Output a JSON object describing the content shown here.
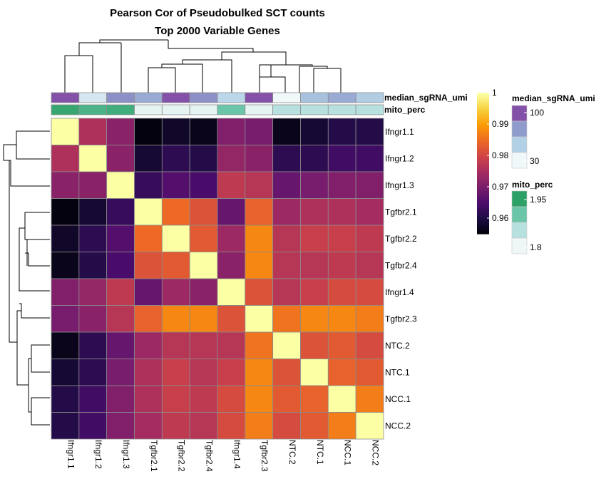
{
  "chart_data": {
    "type": "heatmap",
    "title": "Pearson Cor of Pseudobulked SCT counts",
    "subtitle": "Top 2000 Variable Genes",
    "row_labels": [
      "Ifngr1.1",
      "Ifngr1.2",
      "Ifngr1.3",
      "Tgfbr2.1",
      "Tgfbr2.2",
      "Tgfbr2.4",
      "Ifngr1.4",
      "Tgfbr2.3",
      "NTC.2",
      "NTC.1",
      "NCC.1",
      "NCC.2"
    ],
    "col_labels": [
      "Ifngr1.1",
      "Ifngr1.2",
      "Ifngr1.3",
      "Tgfbr2.1",
      "Tgfbr2.2",
      "Tgfbr2.4",
      "Ifngr1.4",
      "Tgfbr2.3",
      "NTC.2",
      "NTC.1",
      "NCC.1",
      "NCC.2"
    ],
    "values": [
      [
        1.0,
        0.976,
        0.972,
        0.956,
        0.958,
        0.957,
        0.971,
        0.97,
        0.957,
        0.959,
        0.961,
        0.961
      ],
      [
        0.976,
        1.0,
        0.972,
        0.959,
        0.962,
        0.961,
        0.973,
        0.972,
        0.962,
        0.962,
        0.964,
        0.964
      ],
      [
        0.972,
        0.972,
        1.0,
        0.963,
        0.966,
        0.965,
        0.978,
        0.977,
        0.968,
        0.97,
        0.971,
        0.971
      ],
      [
        0.956,
        0.959,
        0.963,
        1.0,
        0.985,
        0.982,
        0.968,
        0.984,
        0.974,
        0.976,
        0.976,
        0.975
      ],
      [
        0.958,
        0.962,
        0.966,
        0.985,
        1.0,
        0.983,
        0.974,
        0.988,
        0.977,
        0.979,
        0.979,
        0.978
      ],
      [
        0.957,
        0.961,
        0.965,
        0.982,
        0.983,
        1.0,
        0.972,
        0.988,
        0.977,
        0.977,
        0.978,
        0.977
      ],
      [
        0.971,
        0.973,
        0.978,
        0.968,
        0.974,
        0.972,
        1.0,
        0.982,
        0.977,
        0.979,
        0.981,
        0.981
      ],
      [
        0.97,
        0.972,
        0.977,
        0.984,
        0.988,
        0.988,
        0.982,
        1.0,
        0.986,
        0.988,
        0.988,
        0.987
      ],
      [
        0.957,
        0.962,
        0.968,
        0.974,
        0.977,
        0.977,
        0.977,
        0.986,
        1.0,
        0.982,
        0.983,
        0.981
      ],
      [
        0.959,
        0.962,
        0.97,
        0.976,
        0.979,
        0.977,
        0.979,
        0.988,
        0.982,
        1.0,
        0.984,
        0.983
      ],
      [
        0.961,
        0.964,
        0.971,
        0.976,
        0.979,
        0.978,
        0.981,
        0.988,
        0.983,
        0.984,
        1.0,
        0.987
      ],
      [
        0.961,
        0.964,
        0.971,
        0.975,
        0.978,
        0.977,
        0.981,
        0.987,
        0.981,
        0.983,
        0.987,
        1.0
      ]
    ],
    "color_scale": {
      "range": [
        0.955,
        1.0
      ],
      "ticks": [
        "0.96",
        "0.97",
        "0.98",
        "0.99",
        "1"
      ],
      "tick_values": [
        0.96,
        0.97,
        0.98,
        0.99,
        1.0
      ],
      "palette": "inferno",
      "colors": [
        "#000004",
        "#1b0c41",
        "#4a0c6b",
        "#781c6d",
        "#a52c60",
        "#cf4446",
        "#ed6925",
        "#fb9b06",
        "#f7d13d",
        "#fcffa4"
      ]
    },
    "annotations": {
      "median_sgRNA_umi": {
        "name": "median_sgRNA_umi",
        "values": [
          100,
          40,
          80,
          70,
          100,
          80,
          50,
          100,
          30,
          60,
          70,
          55
        ],
        "legend_ticks": [
          "100",
          "30"
        ],
        "range": [
          30,
          100
        ],
        "colors": [
          "#f1f8f9",
          "#b3d1e6",
          "#8e9bcb",
          "#8451a8"
        ]
      },
      "mito_perc": {
        "name": "mito_perc",
        "values": [
          1.95,
          1.93,
          1.94,
          1.79,
          1.79,
          1.79,
          1.9,
          1.79,
          1.84,
          1.84,
          1.84,
          1.84
        ],
        "legend_ticks": [
          "1.95",
          "1.8"
        ],
        "range": [
          1.78,
          1.96
        ],
        "colors": [
          "#eef6f6",
          "#b7e1df",
          "#6bc5a9",
          "#2ca066"
        ]
      }
    },
    "row_dendrogram": "clustered",
    "col_dendrogram": "clustered"
  }
}
